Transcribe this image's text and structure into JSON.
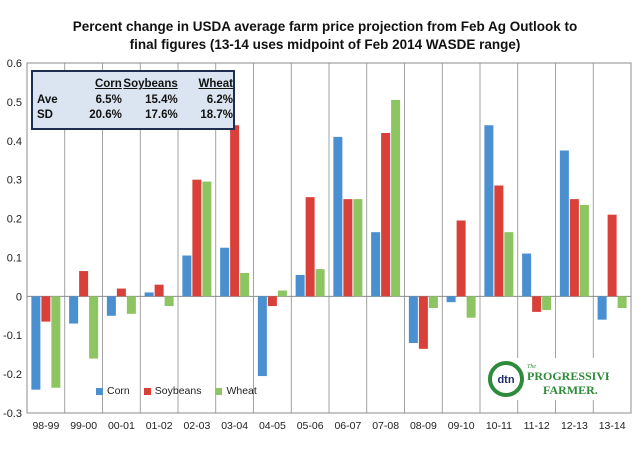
{
  "chart_data": {
    "type": "bar",
    "title_line1": "Percent change in USDA average farm price projection from Feb Ag Outlook to",
    "title_line2": "final figures  (13-14 uses midpoint of Feb 2014 WASDE range)",
    "categories": [
      "98-99",
      "99-00",
      "00-01",
      "01-02",
      "02-03",
      "03-04",
      "04-05",
      "05-06",
      "06-07",
      "07-08",
      "08-09",
      "09-10",
      "10-11",
      "11-12",
      "12-13",
      "13-14"
    ],
    "series": [
      {
        "name": "Corn",
        "color": "#4a90d0",
        "values": [
          -0.24,
          -0.07,
          -0.05,
          0.01,
          0.105,
          0.125,
          -0.205,
          0.055,
          0.41,
          0.165,
          -0.12,
          -0.015,
          0.44,
          0.11,
          0.375,
          -0.06
        ]
      },
      {
        "name": "Soybeans",
        "color": "#d9403a",
        "values": [
          -0.065,
          0.065,
          0.02,
          0.03,
          0.3,
          0.44,
          -0.025,
          0.255,
          0.25,
          0.42,
          -0.135,
          0.195,
          0.285,
          -0.04,
          0.25,
          0.21
        ]
      },
      {
        "name": "Wheat",
        "color": "#8cc561",
        "values": [
          -0.235,
          -0.16,
          -0.045,
          -0.025,
          0.295,
          0.06,
          0.015,
          0.07,
          0.25,
          0.505,
          -0.03,
          -0.055,
          0.165,
          -0.035,
          0.235,
          -0.03
        ]
      }
    ],
    "ylim": [
      -0.3,
      0.6
    ],
    "yticks": [
      "-0.3",
      "-0.2",
      "-0.1",
      "0",
      "0.1",
      "0.2",
      "0.3",
      "0.4",
      "0.5",
      "0.6"
    ],
    "grid": "vertical",
    "legend_position": "bottom-left"
  },
  "stats_box": {
    "headers": [
      "Corn",
      "Soybeans",
      "Wheat"
    ],
    "rows": [
      {
        "label": "Ave",
        "values": [
          "6.5%",
          "15.4%",
          "6.2%"
        ]
      },
      {
        "label": "SD",
        "values": [
          "20.6%",
          "17.6%",
          "18.7%"
        ]
      }
    ]
  },
  "logo": {
    "mark": "dtn",
    "line1": "The",
    "line2": "PROGRESSIVE",
    "line3": "FARMER."
  }
}
